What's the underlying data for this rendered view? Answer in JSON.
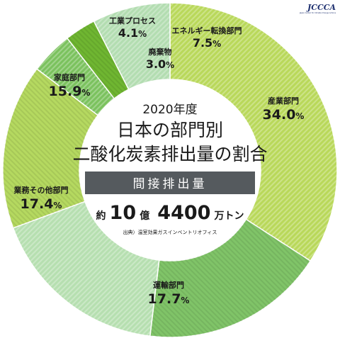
{
  "logo": {
    "text": "JCCCA",
    "subtitle": "Japan Center for Climate Change Actions"
  },
  "center": {
    "year": "2020年度",
    "title_line1": "日本の部門別",
    "title_line2": "二酸化炭素排出量の割合",
    "band": "間接排出量",
    "total_prefix": "約",
    "total_num1": "10",
    "total_unit1": "億",
    "total_num2": "4400",
    "total_unit2": "万トン",
    "source": "出典）温室効果ガスインベントリオフィス"
  },
  "chart_data": {
    "type": "pie",
    "style": "donut",
    "start": "top, clockwise",
    "unit": "%",
    "slices": [
      {
        "name": "産業部門",
        "value": 34.0,
        "label": "34.0",
        "color": "#b9d85a"
      },
      {
        "name": "運輸部門",
        "value": 17.7,
        "label": "17.7",
        "color": "#80c468"
      },
      {
        "name": "業務その他部門",
        "value": 17.4,
        "label": "17.4",
        "color": "#b6dfb0"
      },
      {
        "name": "家庭部門",
        "value": 15.9,
        "label": "15.9",
        "color": "#b5d960"
      },
      {
        "name": "工業プロセス",
        "value": 4.1,
        "label": "4.1",
        "color": "#7bc25e"
      },
      {
        "name": "廃棄物",
        "value": 3.0,
        "label": "3.0",
        "color": "#6fb631"
      },
      {
        "name": "エネルギー転換部門",
        "value": 7.5,
        "label": "7.5",
        "color": "#b3ddb1"
      }
    ]
  }
}
